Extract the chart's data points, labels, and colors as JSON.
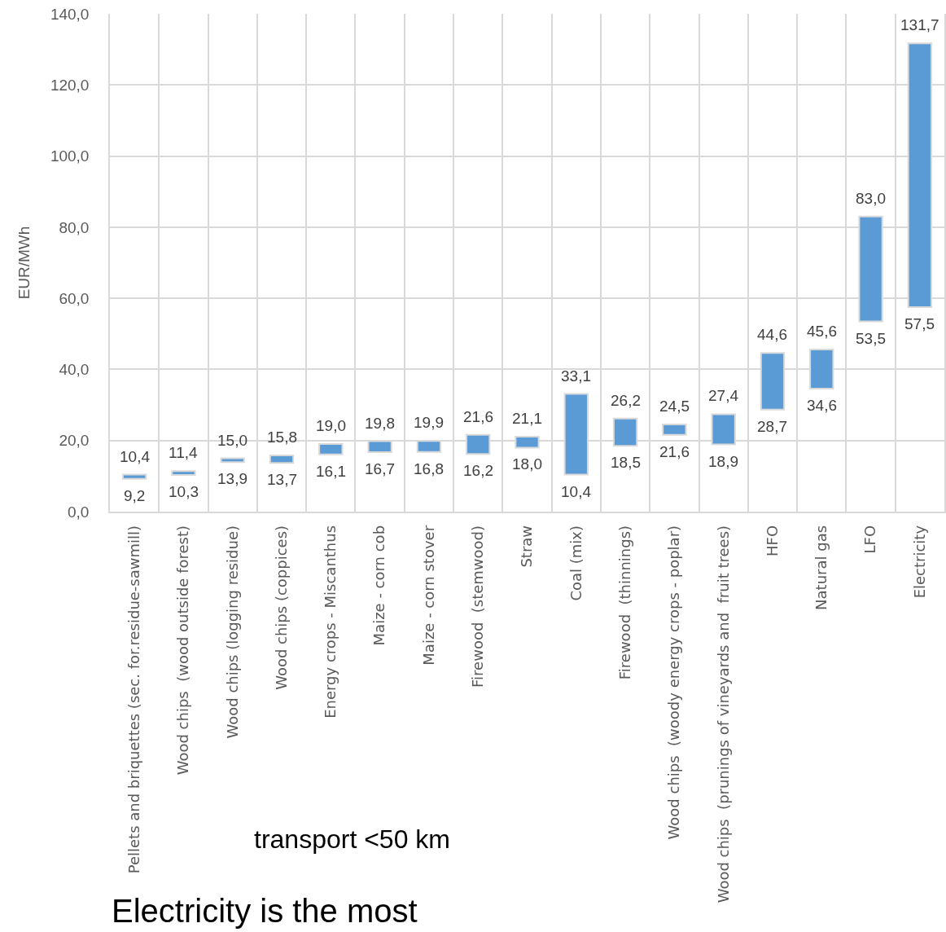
{
  "chart_data": {
    "type": "bar",
    "ylabel": "EUR/MWh",
    "categories": [
      "Pellets and briquettes (sec. for.residue-sawmill)",
      "Wood chips  (wood outside forest)",
      "Wood chips (logging residue)",
      "Wood chips (coppices)",
      "Energy crops - Miscanthus",
      "Maize - corn cob",
      "Maize - corn stover",
      "Firewood  (stemwood)",
      "Straw",
      "Coal (mix)",
      "Firewood  (thinnings)",
      "Wood chips  (woody energy crops - poplar)",
      "Wood chips  (prunings of vineyards and  fruit trees)",
      "HFO",
      "Natural gas",
      "LFO",
      "Electricity"
    ],
    "base": [
      9.2,
      10.3,
      13.9,
      13.7,
      16.1,
      16.7,
      16.8,
      16.2,
      18.0,
      10.4,
      18.5,
      21.6,
      18.9,
      28.7,
      34.6,
      53.5,
      57.5
    ],
    "values": [
      1.2,
      1.1,
      1.1,
      2.1,
      2.9,
      3.1,
      3.1,
      5.4,
      3.1,
      22.7,
      7.7,
      2.9,
      8.5,
      15.9,
      11.0,
      29.5,
      74.2
    ],
    "color": "#5b9bd5",
    "ylim": [
      0,
      140
    ],
    "yticks": [
      {
        "value": 0,
        "label": "0,0"
      },
      {
        "value": 20,
        "label": "20,0"
      },
      {
        "value": 40,
        "label": "40,0"
      },
      {
        "value": 60,
        "label": "60,0"
      },
      {
        "value": 80,
        "label": "80,0"
      },
      {
        "value": 100,
        "label": "100,0"
      },
      {
        "value": 120,
        "label": "120,0"
      },
      {
        "value": 140,
        "label": "140,0"
      }
    ],
    "grid": true,
    "annotations": [
      {
        "text": "10,4",
        "x": "Pellets and briquettes (sec. for.residue-sawmill)",
        "y": 10.4
      },
      {
        "text": "9,2",
        "x": "Pellets and briquettes (sec. for.residue-sawmill)",
        "y": 9.2
      },
      {
        "text": "11,4",
        "x": "Wood chips  (wood outside forest)",
        "y": 11.4
      },
      {
        "text": "10,3",
        "x": "Wood chips  (wood outside forest)",
        "y": 10.3
      },
      {
        "text": "15,0",
        "x": "Wood chips (logging residue)",
        "y": 15.0
      },
      {
        "text": "13,9",
        "x": "Wood chips (logging residue)",
        "y": 13.9
      },
      {
        "text": "15,8",
        "x": "Wood chips (coppices)",
        "y": 15.8
      },
      {
        "text": "13,7",
        "x": "Wood chips (coppices)",
        "y": 13.7
      },
      {
        "text": "19,0",
        "x": "Energy crops - Miscanthus",
        "y": 19.0
      },
      {
        "text": "16,1",
        "x": "Energy crops - Miscanthus",
        "y": 16.1
      },
      {
        "text": "19,8",
        "x": "Maize - corn cob",
        "y": 19.8
      },
      {
        "text": "16,7",
        "x": "Maize - corn cob",
        "y": 16.7
      },
      {
        "text": "19,9",
        "x": "Maize - corn stover",
        "y": 19.9
      },
      {
        "text": "16,8",
        "x": "Maize - corn stover",
        "y": 16.8
      },
      {
        "text": "21,6",
        "x": "Firewood  (stemwood)",
        "y": 21.6
      },
      {
        "text": "16,2",
        "x": "Firewood  (stemwood)",
        "y": 16.2
      },
      {
        "text": "21,1",
        "x": "Straw",
        "y": 21.1
      },
      {
        "text": "18,0",
        "x": "Straw",
        "y": 18.0
      },
      {
        "text": "33,1",
        "x": "Coal (mix)",
        "y": 33.1
      },
      {
        "text": "10,4",
        "x": "Coal (mix)",
        "y": 10.4
      },
      {
        "text": "26,2",
        "x": "Firewood  (thinnings)",
        "y": 26.2
      },
      {
        "text": "18,5",
        "x": "Firewood  (thinnings)",
        "y": 18.5
      },
      {
        "text": "24,5",
        "x": "Wood chips  (woody energy crops - poplar)",
        "y": 24.5
      },
      {
        "text": "21,6",
        "x": "Wood chips  (woody energy crops - poplar)",
        "y": 21.6
      },
      {
        "text": "27,4",
        "x": "Wood chips  (prunings of vineyards and  fruit trees)",
        "y": 27.4
      },
      {
        "text": "18,9",
        "x": "Wood chips  (prunings of vineyards and  fruit trees)",
        "y": 18.9
      },
      {
        "text": "44,6",
        "x": "HFO",
        "y": 44.6
      },
      {
        "text": "28,7",
        "x": "HFO",
        "y": 28.7
      },
      {
        "text": "45,6",
        "x": "Natural gas",
        "y": 45.6
      },
      {
        "text": "34,6",
        "x": "Natural gas",
        "y": 34.6
      },
      {
        "text": "83,0",
        "x": "LFO",
        "y": 83.0
      },
      {
        "text": "53,5",
        "x": "LFO",
        "y": 53.5
      },
      {
        "text": "131,7",
        "x": "Electricity",
        "y": 131.7
      },
      {
        "text": "57,5",
        "x": "Electricity",
        "y": 57.5
      },
      "transport <50 km",
      "Electricity is the most"
    ]
  }
}
